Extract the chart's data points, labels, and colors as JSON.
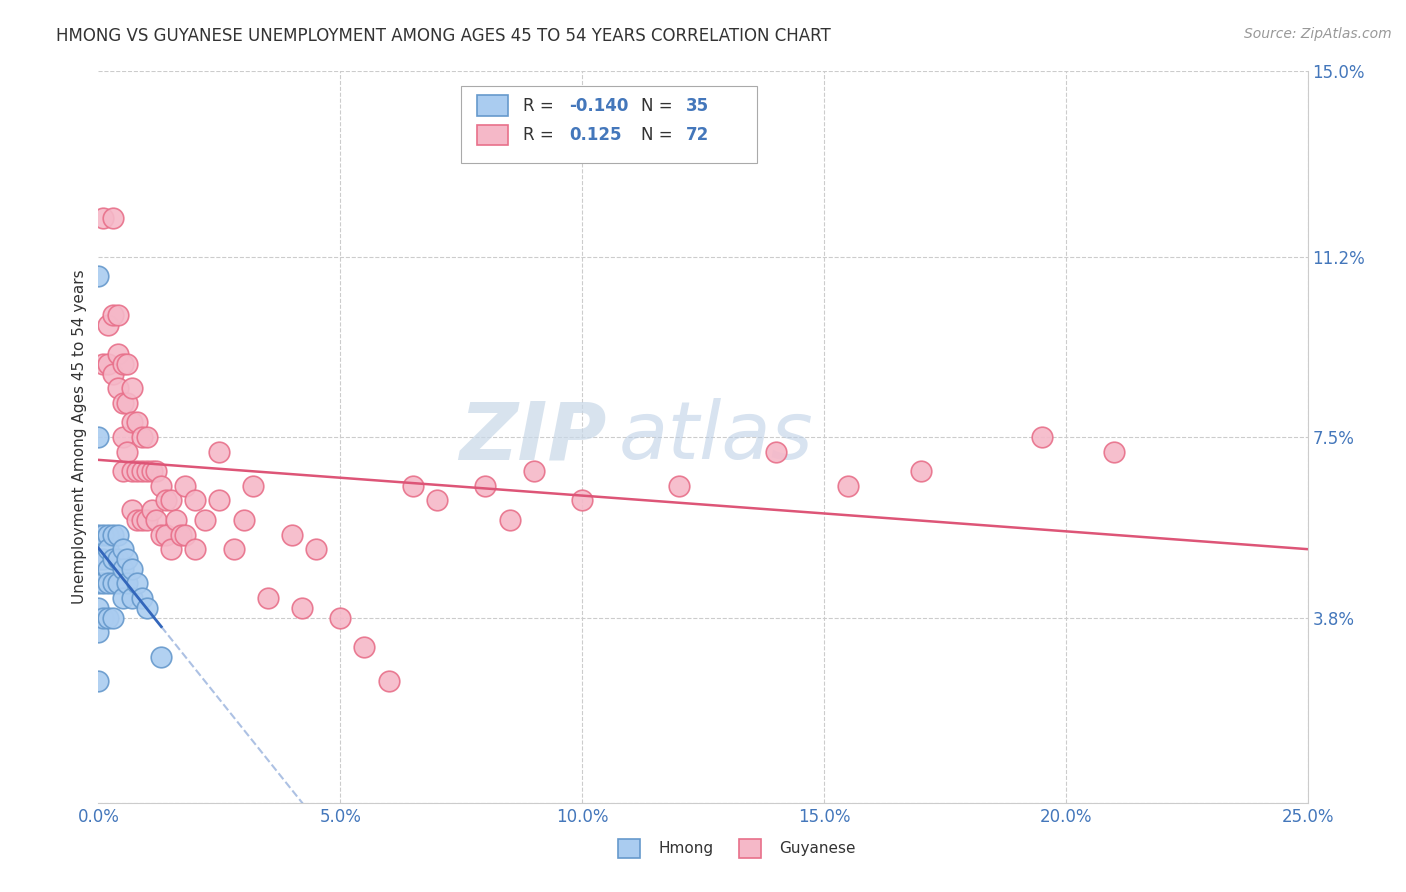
{
  "title": "HMONG VS GUYANESE UNEMPLOYMENT AMONG AGES 45 TO 54 YEARS CORRELATION CHART",
  "source": "Source: ZipAtlas.com",
  "ylabel": "Unemployment Among Ages 45 to 54 years",
  "xlim": [
    0.0,
    0.25
  ],
  "ylim": [
    0.0,
    0.15
  ],
  "xticks": [
    0.0,
    0.05,
    0.1,
    0.15,
    0.2,
    0.25
  ],
  "xticklabels": [
    "0.0%",
    "5.0%",
    "10.0%",
    "15.0%",
    "20.0%",
    "25.0%"
  ],
  "yticks_right": [
    0.0,
    0.038,
    0.075,
    0.112,
    0.15
  ],
  "ytick_right_labels": [
    "",
    "3.8%",
    "7.5%",
    "11.2%",
    "15.0%"
  ],
  "hmong_color": "#aaccf0",
  "guyanese_color": "#f5b8c8",
  "hmong_edge_color": "#6699cc",
  "guyanese_edge_color": "#e8708a",
  "hmong_line_color": "#3366bb",
  "guyanese_line_color": "#dd5577",
  "hmong_label": "Hmong",
  "guyanese_label": "Guyanese",
  "hmong_R": "-0.140",
  "hmong_N": "35",
  "guyanese_R": "0.125",
  "guyanese_N": "72",
  "watermark_zip": "ZIP",
  "watermark_atlas": "atlas",
  "background_color": "#ffffff",
  "grid_color": "#cccccc",
  "hmong_x": [
    0.0,
    0.0,
    0.0,
    0.0,
    0.0,
    0.0,
    0.0,
    0.0,
    0.001,
    0.001,
    0.001,
    0.001,
    0.002,
    0.002,
    0.002,
    0.002,
    0.002,
    0.003,
    0.003,
    0.003,
    0.003,
    0.004,
    0.004,
    0.004,
    0.005,
    0.005,
    0.005,
    0.006,
    0.006,
    0.007,
    0.007,
    0.008,
    0.009,
    0.01,
    0.013
  ],
  "hmong_y": [
    0.108,
    0.075,
    0.055,
    0.05,
    0.045,
    0.04,
    0.035,
    0.025,
    0.055,
    0.05,
    0.045,
    0.038,
    0.055,
    0.052,
    0.048,
    0.045,
    0.038,
    0.055,
    0.05,
    0.045,
    0.038,
    0.055,
    0.05,
    0.045,
    0.052,
    0.048,
    0.042,
    0.05,
    0.045,
    0.048,
    0.042,
    0.045,
    0.042,
    0.04,
    0.03
  ],
  "guyanese_x": [
    0.0,
    0.001,
    0.001,
    0.002,
    0.002,
    0.003,
    0.003,
    0.003,
    0.004,
    0.004,
    0.004,
    0.005,
    0.005,
    0.005,
    0.005,
    0.006,
    0.006,
    0.006,
    0.007,
    0.007,
    0.007,
    0.007,
    0.008,
    0.008,
    0.008,
    0.009,
    0.009,
    0.009,
    0.01,
    0.01,
    0.01,
    0.011,
    0.011,
    0.012,
    0.012,
    0.013,
    0.013,
    0.014,
    0.014,
    0.015,
    0.015,
    0.016,
    0.017,
    0.018,
    0.018,
    0.02,
    0.02,
    0.022,
    0.025,
    0.025,
    0.028,
    0.03,
    0.032,
    0.035,
    0.04,
    0.042,
    0.045,
    0.05,
    0.055,
    0.06,
    0.065,
    0.07,
    0.08,
    0.085,
    0.09,
    0.1,
    0.12,
    0.14,
    0.155,
    0.17,
    0.195,
    0.21
  ],
  "guyanese_y": [
    0.05,
    0.12,
    0.09,
    0.098,
    0.09,
    0.12,
    0.1,
    0.088,
    0.1,
    0.092,
    0.085,
    0.09,
    0.082,
    0.075,
    0.068,
    0.09,
    0.082,
    0.072,
    0.085,
    0.078,
    0.068,
    0.06,
    0.078,
    0.068,
    0.058,
    0.075,
    0.068,
    0.058,
    0.075,
    0.068,
    0.058,
    0.068,
    0.06,
    0.068,
    0.058,
    0.065,
    0.055,
    0.062,
    0.055,
    0.062,
    0.052,
    0.058,
    0.055,
    0.065,
    0.055,
    0.062,
    0.052,
    0.058,
    0.072,
    0.062,
    0.052,
    0.058,
    0.065,
    0.042,
    0.055,
    0.04,
    0.052,
    0.038,
    0.032,
    0.025,
    0.065,
    0.062,
    0.065,
    0.058,
    0.068,
    0.062,
    0.065,
    0.072,
    0.065,
    0.068,
    0.075,
    0.072
  ]
}
